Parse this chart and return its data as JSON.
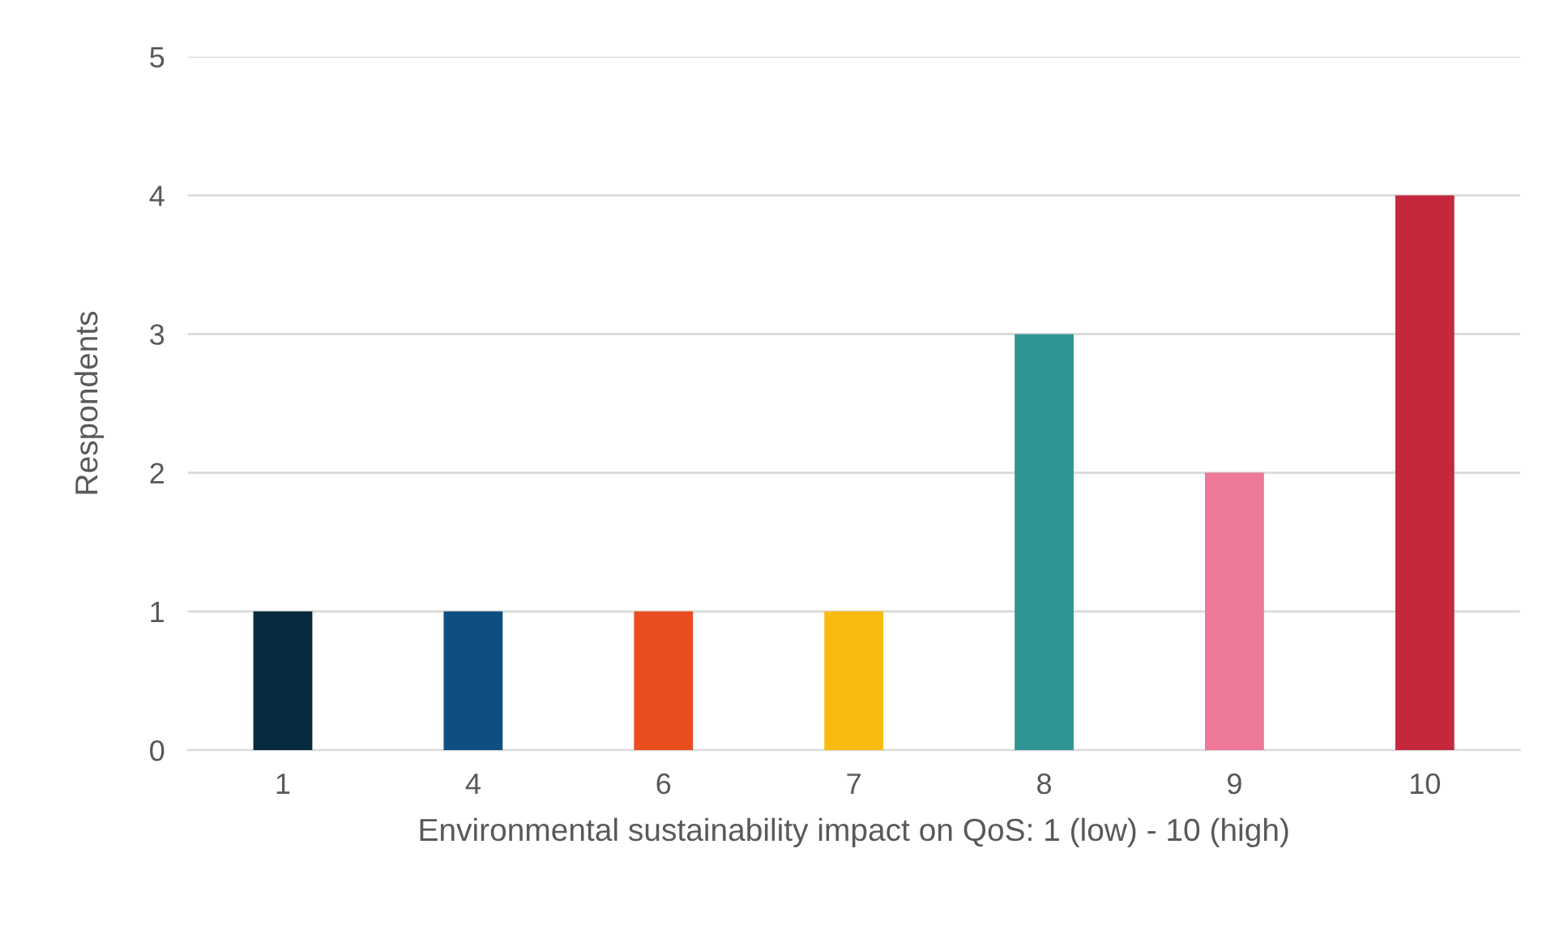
{
  "chart_data": {
    "type": "bar",
    "xlabel": "Environmental sustainability impact on QoS: 1 (low) - 10 (high)",
    "ylabel": "Respondents",
    "categories": [
      "1",
      "4",
      "6",
      "7",
      "8",
      "9",
      "10"
    ],
    "values": [
      1,
      1,
      1,
      1,
      3,
      2,
      4
    ],
    "colors": [
      "#062a3e",
      "#0e4f82",
      "#e84e1f",
      "#f8bb10",
      "#319494",
      "#ee7898",
      "#c5283d"
    ],
    "ylim": [
      0,
      5
    ],
    "yticks": [
      0,
      1,
      2,
      3,
      4,
      5
    ],
    "grid": "y",
    "legend": false
  }
}
